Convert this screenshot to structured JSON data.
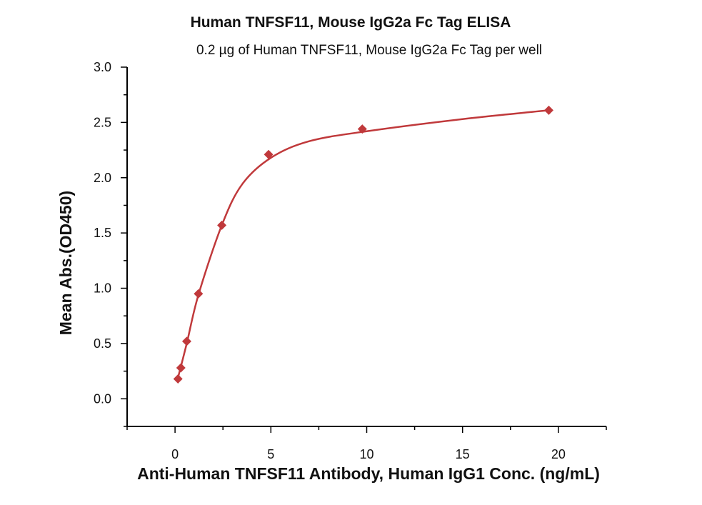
{
  "chart_data": {
    "type": "scatter",
    "title": "Human TNFSF11, Mouse IgG2a Fc Tag ELISA",
    "subtitle": "0.2 µg of Human TNFSF11, Mouse IgG2a Fc Tag per well",
    "xlabel": "Anti-Human TNFSF11 Antibody, Human IgG1 Conc. (ng/mL)",
    "ylabel": "Mean Abs.(OD450)",
    "xlim": [
      -2.5,
      22.5
    ],
    "ylim": [
      -0.25,
      3.0
    ],
    "xticks": [
      "0",
      "5",
      "10",
      "15",
      "20"
    ],
    "yticks": [
      "0.0",
      "0.5",
      "1.0",
      "1.5",
      "2.0",
      "2.5",
      "3.0"
    ],
    "grid": false,
    "color": "#c0393b",
    "series": [
      {
        "marker": "diamond",
        "x": [
          0.153,
          0.305,
          0.61,
          1.22,
          2.44,
          4.88,
          9.77,
          19.5
        ],
        "y": [
          0.18,
          0.28,
          0.52,
          0.95,
          1.57,
          2.21,
          2.44,
          2.61
        ]
      }
    ],
    "fit_curve": {
      "x": [
        0.153,
        0.61,
        1.22,
        2.44,
        3.5,
        5,
        7,
        10,
        15,
        19.5
      ],
      "y": [
        0.19,
        0.5,
        0.94,
        1.57,
        1.94,
        2.18,
        2.33,
        2.42,
        2.53,
        2.61
      ]
    }
  }
}
